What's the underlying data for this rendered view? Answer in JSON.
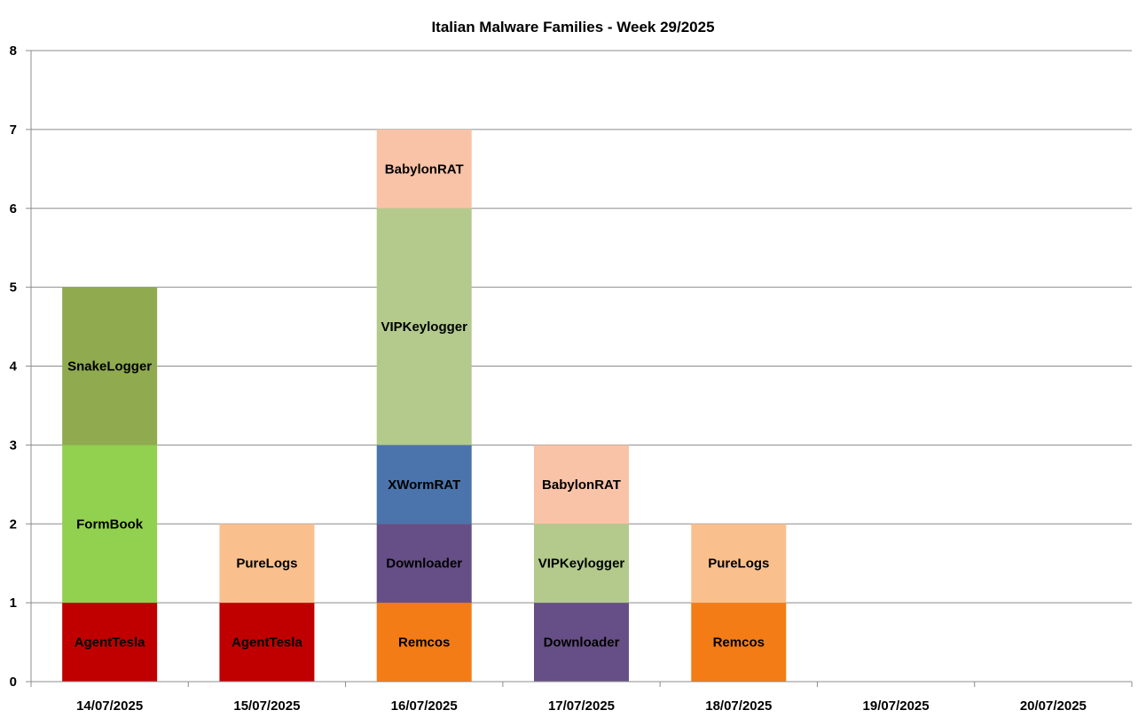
{
  "chart_data": {
    "type": "bar",
    "stacked": true,
    "title": "Italian Malware Families - Week 29/2025",
    "xlabel": "",
    "ylabel": "",
    "ylim": [
      0,
      8
    ],
    "yticks": [
      "0",
      "1",
      "2",
      "3",
      "4",
      "5",
      "6",
      "7",
      "8"
    ],
    "grid": true,
    "legend": "none",
    "categories": [
      "14/07/2025",
      "15/07/2025",
      "16/07/2025",
      "17/07/2025",
      "18/07/2025",
      "19/07/2025",
      "20/07/2025"
    ],
    "stacks": [
      [
        {
          "label": "AgentTesla",
          "value": 1,
          "color": "#c00000"
        },
        {
          "label": "FormBook",
          "value": 2,
          "color": "#92d050"
        },
        {
          "label": "SnakeLogger",
          "value": 2,
          "color": "#8faa4f"
        }
      ],
      [
        {
          "label": "AgentTesla",
          "value": 1,
          "color": "#c00000"
        },
        {
          "label": "PureLogs",
          "value": 1,
          "color": "#f9c08e"
        }
      ],
      [
        {
          "label": "Remcos",
          "value": 1,
          "color": "#f47c16"
        },
        {
          "label": "Downloader",
          "value": 1,
          "color": "#664f86"
        },
        {
          "label": "XWormRAT",
          "value": 1,
          "color": "#4a74ab"
        },
        {
          "label": "VIPKeylogger",
          "value": 3,
          "color": "#b3ca8c"
        },
        {
          "label": "BabylonRAT",
          "value": 1,
          "color": "#f9c3a7"
        }
      ],
      [
        {
          "label": "Downloader",
          "value": 1,
          "color": "#664f86"
        },
        {
          "label": "VIPKeylogger",
          "value": 1,
          "color": "#b3ca8c"
        },
        {
          "label": "BabylonRAT",
          "value": 1,
          "color": "#f9c3a7"
        }
      ],
      [
        {
          "label": "Remcos",
          "value": 1,
          "color": "#f47c16"
        },
        {
          "label": "PureLogs",
          "value": 1,
          "color": "#f9c08e"
        }
      ],
      [],
      []
    ]
  }
}
